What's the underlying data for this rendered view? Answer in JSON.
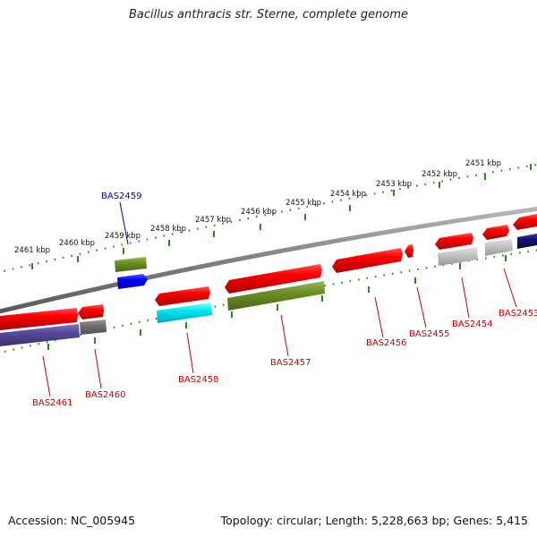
{
  "title": "Bacillus anthracis str. Sterne, complete genome",
  "accession": "Accession: NC_005945",
  "summary": "Topology: circular; Length: 5,228,663 bp; Genes: 5,415",
  "colors": {
    "backbone": "#808080",
    "tick": "#2a8a1a",
    "label_default": "#cc0000",
    "label_selected": "#0000cc"
  },
  "scale_ticks": [
    "2451 kbp",
    "2452 kbp",
    "2453 kbp",
    "2454 kbp",
    "2455 kbp",
    "2456 kbp",
    "2457 kbp",
    "2458 kbp",
    "2459 kbp",
    "2460 kbp",
    "2461 kbp"
  ],
  "genes": [
    {
      "name": "BAS2453",
      "color": "#cc0000",
      "selected": false
    },
    {
      "name": "BAS2454",
      "color": "#cc0000",
      "selected": false
    },
    {
      "name": "BAS2455",
      "color": "#cc0000",
      "selected": false
    },
    {
      "name": "BAS2456",
      "color": "#cc0000",
      "selected": false
    },
    {
      "name": "BAS2457",
      "color": "#cc0000",
      "selected": false
    },
    {
      "name": "BAS2458",
      "color": "#cc0000",
      "selected": false
    },
    {
      "name": "BAS2459",
      "color": "#0000cc",
      "selected": true
    },
    {
      "name": "BAS2460",
      "color": "#cc0000",
      "selected": false
    },
    {
      "name": "BAS2461",
      "color": "#cc0000",
      "selected": false
    }
  ]
}
